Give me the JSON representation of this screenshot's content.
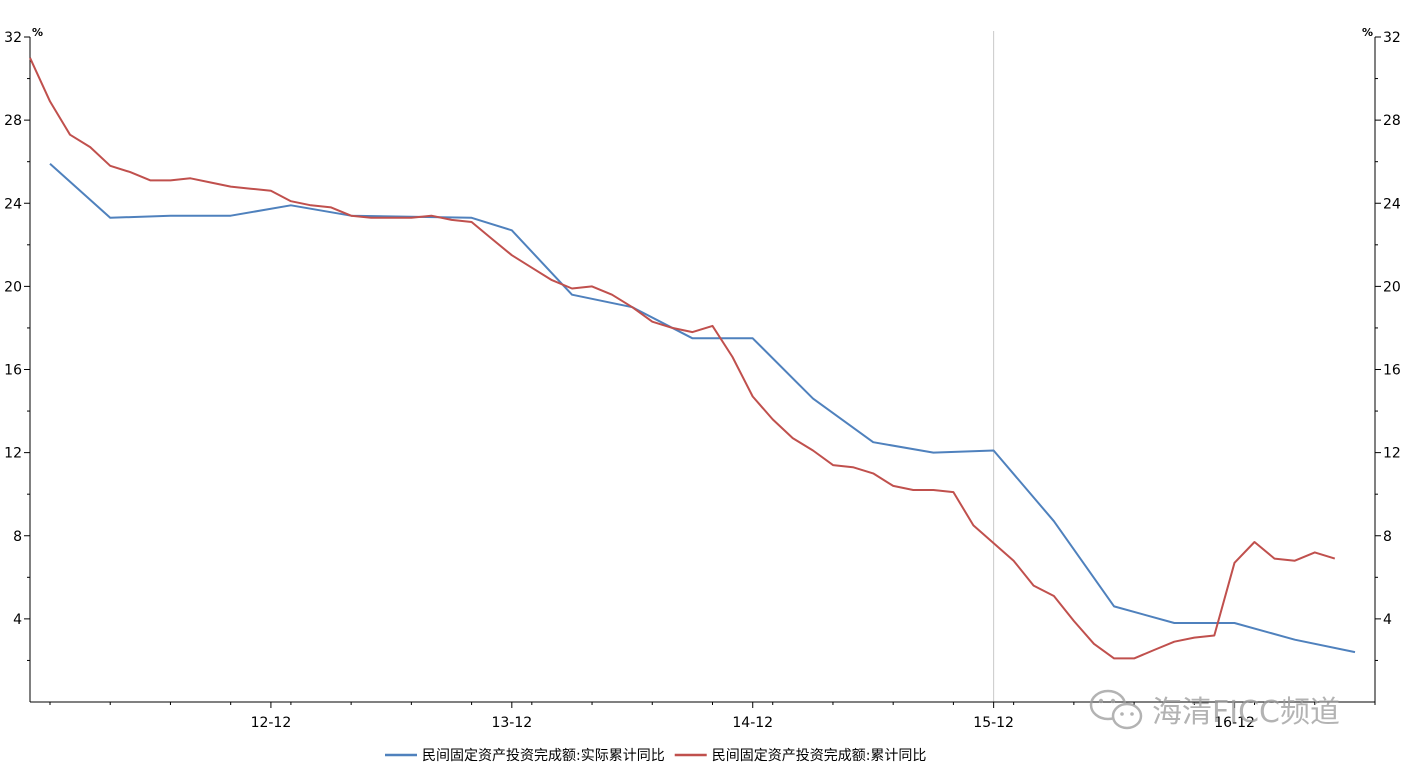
{
  "chart_data": {
    "type": "line",
    "y_unit_left": "%",
    "y_unit_right": "%",
    "ylim": [
      0,
      32
    ],
    "yticks": [
      4,
      8,
      12,
      16,
      20,
      24,
      28,
      32
    ],
    "xlim": [
      2011.917,
      2017.5
    ],
    "xticks": [
      {
        "x": 2012.917,
        "label": "12-12"
      },
      {
        "x": 2013.917,
        "label": "13-12"
      },
      {
        "x": 2014.917,
        "label": "14-12"
      },
      {
        "x": 2015.917,
        "label": "15-12"
      },
      {
        "x": 2016.917,
        "label": "16-12"
      }
    ],
    "reference_line_x": 2015.917,
    "series": [
      {
        "name": "民间固定资产投资完成额:实际累计同比",
        "color": "#4f81bd",
        "points": [
          [
            2012.0,
            25.9
          ],
          [
            2012.25,
            23.3
          ],
          [
            2012.5,
            23.4
          ],
          [
            2012.75,
            23.4
          ],
          [
            2013.0,
            23.9
          ],
          [
            2013.25,
            23.4
          ],
          [
            2013.75,
            23.3
          ],
          [
            2013.917,
            22.7
          ],
          [
            2014.167,
            19.6
          ],
          [
            2014.417,
            19.0
          ],
          [
            2014.667,
            17.5
          ],
          [
            2014.917,
            17.5
          ],
          [
            2015.167,
            14.6
          ],
          [
            2015.417,
            12.5
          ],
          [
            2015.667,
            12.0
          ],
          [
            2015.917,
            12.1
          ],
          [
            2016.167,
            8.7
          ],
          [
            2016.417,
            4.6
          ],
          [
            2016.667,
            3.8
          ],
          [
            2016.917,
            3.8
          ],
          [
            2017.167,
            3.0
          ],
          [
            2017.417,
            2.4
          ]
        ]
      },
      {
        "name": "民间固定资产投资完成额:累计同比",
        "color": "#c0504d",
        "points": [
          [
            2011.917,
            31.0
          ],
          [
            2012.0,
            28.9
          ],
          [
            2012.083,
            27.3
          ],
          [
            2012.167,
            26.7
          ],
          [
            2012.25,
            25.8
          ],
          [
            2012.333,
            25.5
          ],
          [
            2012.417,
            25.1
          ],
          [
            2012.5,
            25.1
          ],
          [
            2012.583,
            25.2
          ],
          [
            2012.667,
            25.0
          ],
          [
            2012.75,
            24.8
          ],
          [
            2012.833,
            24.7
          ],
          [
            2012.917,
            24.6
          ],
          [
            2013.0,
            24.1
          ],
          [
            2013.083,
            23.9
          ],
          [
            2013.167,
            23.8
          ],
          [
            2013.25,
            23.4
          ],
          [
            2013.333,
            23.3
          ],
          [
            2013.417,
            23.3
          ],
          [
            2013.5,
            23.3
          ],
          [
            2013.583,
            23.4
          ],
          [
            2013.667,
            23.2
          ],
          [
            2013.75,
            23.1
          ],
          [
            2013.833,
            22.3
          ],
          [
            2013.917,
            21.5
          ],
          [
            2014.0,
            20.9
          ],
          [
            2014.083,
            20.3
          ],
          [
            2014.167,
            19.9
          ],
          [
            2014.25,
            20.0
          ],
          [
            2014.333,
            19.6
          ],
          [
            2014.417,
            19.0
          ],
          [
            2014.5,
            18.3
          ],
          [
            2014.583,
            18.0
          ],
          [
            2014.667,
            17.8
          ],
          [
            2014.75,
            18.1
          ],
          [
            2014.833,
            16.6
          ],
          [
            2014.917,
            14.7
          ],
          [
            2015.0,
            13.6
          ],
          [
            2015.083,
            12.7
          ],
          [
            2015.167,
            12.1
          ],
          [
            2015.25,
            11.4
          ],
          [
            2015.333,
            11.3
          ],
          [
            2015.417,
            11.0
          ],
          [
            2015.5,
            10.4
          ],
          [
            2015.583,
            10.2
          ],
          [
            2015.667,
            10.2
          ],
          [
            2015.75,
            10.1
          ],
          [
            2015.833,
            8.5
          ],
          [
            2016.0,
            6.8
          ],
          [
            2016.083,
            5.6
          ],
          [
            2016.167,
            5.1
          ],
          [
            2016.25,
            3.9
          ],
          [
            2016.333,
            2.8
          ],
          [
            2016.417,
            2.1
          ],
          [
            2016.5,
            2.1
          ],
          [
            2016.583,
            2.5
          ],
          [
            2016.667,
            2.9
          ],
          [
            2016.75,
            3.1
          ],
          [
            2016.833,
            3.2
          ],
          [
            2016.917,
            6.7
          ],
          [
            2017.0,
            7.7
          ],
          [
            2017.083,
            6.9
          ],
          [
            2017.167,
            6.8
          ],
          [
            2017.25,
            7.2
          ],
          [
            2017.333,
            6.9
          ]
        ]
      }
    ],
    "legend_position": "bottom-center"
  },
  "watermark": {
    "text": "海清FICC频道",
    "icon": "wechat-icon"
  }
}
